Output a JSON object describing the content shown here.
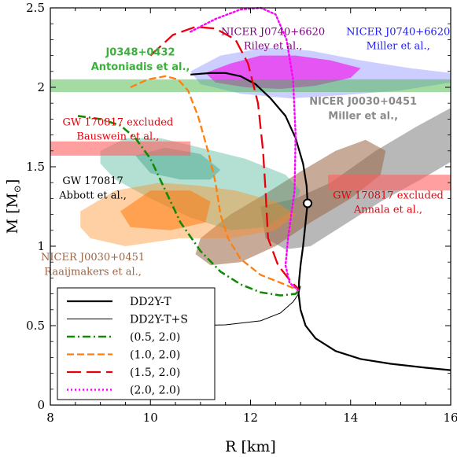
{
  "chart_data": {
    "type": "line",
    "xlabel": "R [km]",
    "ylabel": "M [M",
    "ylabel_sub": "⊙",
    "ylabel_close": "]",
    "xlim": [
      8,
      16
    ],
    "ylim": [
      0,
      2.5
    ],
    "x_ticks": [
      8,
      10,
      12,
      14,
      16
    ],
    "y_ticks": [
      0,
      0.5,
      1,
      1.5,
      2,
      2.5
    ],
    "x_tick_labels": [
      "8",
      "10",
      "12",
      "14",
      "16"
    ],
    "y_tick_labels": [
      "0",
      "0.5",
      "1",
      "1.5",
      "2",
      "2.5"
    ],
    "grid": false,
    "legend_position": "bottom-left",
    "series": [
      {
        "name": "DD2Y-T",
        "color": "#000000",
        "style": "solid",
        "width": 2.2,
        "points": [
          [
            10.8,
            2.08
          ],
          [
            11.2,
            2.09
          ],
          [
            11.5,
            2.09
          ],
          [
            11.8,
            2.07
          ],
          [
            12.1,
            2.02
          ],
          [
            12.4,
            1.93
          ],
          [
            12.7,
            1.82
          ],
          [
            12.9,
            1.68
          ],
          [
            13.05,
            1.52
          ],
          [
            13.12,
            1.38
          ],
          [
            13.14,
            1.27
          ],
          [
            13.1,
            1.15
          ],
          [
            13.05,
            1.0
          ],
          [
            13.0,
            0.88
          ],
          [
            12.97,
            0.78
          ],
          [
            12.96,
            0.7
          ],
          [
            13.0,
            0.6
          ],
          [
            13.1,
            0.5
          ],
          [
            13.3,
            0.42
          ],
          [
            13.7,
            0.34
          ],
          [
            14.2,
            0.29
          ],
          [
            14.8,
            0.26
          ],
          [
            15.5,
            0.235
          ],
          [
            16.0,
            0.22
          ]
        ]
      },
      {
        "name": "DD2Y-T+S",
        "color": "#000000",
        "style": "solid",
        "width": 1,
        "points": [
          [
            10.75,
            0.5
          ],
          [
            11.5,
            0.505
          ],
          [
            12.2,
            0.53
          ],
          [
            12.6,
            0.58
          ],
          [
            12.85,
            0.65
          ],
          [
            12.96,
            0.7
          ],
          [
            13.0,
            0.75
          ]
        ]
      },
      {
        "name": "(0.5, 2.0)",
        "color": "#138a07",
        "style": "dashdot",
        "width": 2.6,
        "points": [
          [
            8.55,
            1.82
          ],
          [
            9.0,
            1.8
          ],
          [
            9.4,
            1.76
          ],
          [
            9.7,
            1.68
          ],
          [
            10.0,
            1.55
          ],
          [
            10.3,
            1.35
          ],
          [
            10.6,
            1.15
          ],
          [
            11.0,
            0.97
          ],
          [
            11.4,
            0.84
          ],
          [
            11.8,
            0.76
          ],
          [
            12.2,
            0.71
          ],
          [
            12.6,
            0.69
          ],
          [
            12.9,
            0.7
          ],
          [
            12.96,
            0.72
          ]
        ]
      },
      {
        "name": "(1.0, 2.0)",
        "color": "#ff7f0e",
        "style": "dash",
        "width": 2.3,
        "points": [
          [
            9.6,
            2.0
          ],
          [
            9.95,
            2.05
          ],
          [
            10.3,
            2.07
          ],
          [
            10.55,
            2.05
          ],
          [
            10.75,
            1.98
          ],
          [
            10.95,
            1.82
          ],
          [
            11.15,
            1.6
          ],
          [
            11.3,
            1.4
          ],
          [
            11.4,
            1.2
          ],
          [
            11.55,
            1.05
          ],
          [
            11.8,
            0.92
          ],
          [
            12.2,
            0.82
          ],
          [
            12.6,
            0.77
          ],
          [
            12.9,
            0.73
          ],
          [
            12.96,
            0.72
          ]
        ]
      },
      {
        "name": "(1.5, 2.0)",
        "color": "#e8000b",
        "style": "longdash",
        "width": 2.3,
        "points": [
          [
            10.0,
            2.2
          ],
          [
            10.45,
            2.33
          ],
          [
            10.9,
            2.38
          ],
          [
            11.3,
            2.37
          ],
          [
            11.7,
            2.3
          ],
          [
            11.95,
            2.15
          ],
          [
            12.15,
            1.9
          ],
          [
            12.25,
            1.6
          ],
          [
            12.3,
            1.35
          ],
          [
            12.35,
            1.05
          ],
          [
            12.55,
            0.88
          ],
          [
            12.8,
            0.78
          ],
          [
            12.96,
            0.73
          ]
        ]
      },
      {
        "name": "(2.0, 2.0)",
        "color": "#ff00ff",
        "style": "dot",
        "width": 2.4,
        "points": [
          [
            10.8,
            2.35
          ],
          [
            11.3,
            2.43
          ],
          [
            11.8,
            2.49
          ],
          [
            12.2,
            2.5
          ],
          [
            12.5,
            2.46
          ],
          [
            12.72,
            2.3
          ],
          [
            12.85,
            2.05
          ],
          [
            12.9,
            1.7
          ],
          [
            12.88,
            1.35
          ],
          [
            12.75,
            1.05
          ],
          [
            12.7,
            0.88
          ],
          [
            12.78,
            0.77
          ],
          [
            12.96,
            0.72
          ]
        ]
      }
    ],
    "marker": {
      "x": 13.14,
      "y": 1.27
    },
    "regions": [
      {
        "name": "NICER J0740+6620 Miller",
        "color": "#8f92ff",
        "opacity": 0.45,
        "points": [
          [
            10.8,
            2.1
          ],
          [
            11.4,
            2.2
          ],
          [
            12.3,
            2.25
          ],
          [
            13.2,
            2.23
          ],
          [
            14.2,
            2.17
          ],
          [
            15.2,
            2.12
          ],
          [
            16.0,
            2.09
          ],
          [
            16.0,
            2.03
          ],
          [
            15.0,
            1.98
          ],
          [
            13.8,
            1.95
          ],
          [
            12.8,
            1.93
          ],
          [
            11.8,
            1.96
          ],
          [
            11.0,
            2.02
          ]
        ]
      },
      {
        "name": "NICER J0740+6620 Riley",
        "color": "#ee22ee",
        "opacity": 0.7,
        "points": [
          [
            11.1,
            2.09
          ],
          [
            11.6,
            2.15
          ],
          [
            12.2,
            2.2
          ],
          [
            12.9,
            2.2
          ],
          [
            13.6,
            2.17
          ],
          [
            14.2,
            2.12
          ],
          [
            14.0,
            2.06
          ],
          [
            13.3,
            2.01
          ],
          [
            12.6,
            1.99
          ],
          [
            11.9,
            2.0
          ],
          [
            11.3,
            2.03
          ]
        ]
      },
      {
        "name": "J0348+0432 band",
        "color": "#47b847",
        "opacity": 0.5,
        "points": [
          [
            8.0,
            1.97
          ],
          [
            16.0,
            1.97
          ],
          [
            16.0,
            2.05
          ],
          [
            8.0,
            2.05
          ]
        ]
      },
      {
        "name": "NICER J0030+0451 Miller",
        "color": "#9a9a9a",
        "opacity": 0.7,
        "points": [
          [
            12.2,
            1.25
          ],
          [
            12.9,
            1.3
          ],
          [
            13.6,
            1.4
          ],
          [
            14.5,
            1.6
          ],
          [
            15.3,
            1.75
          ],
          [
            16.0,
            1.87
          ],
          [
            16.0,
            1.53
          ],
          [
            15.4,
            1.42
          ],
          [
            14.6,
            1.28
          ],
          [
            13.8,
            1.12
          ],
          [
            13.2,
            1.0
          ],
          [
            12.7,
            0.98
          ],
          [
            12.3,
            1.05
          ]
        ]
      },
      {
        "name": "NICER J0030+0451 Raaijmakers",
        "color": "#9a6446",
        "opacity": 0.55,
        "points": [
          [
            11.0,
            1.05
          ],
          [
            11.6,
            1.2
          ],
          [
            12.3,
            1.33
          ],
          [
            13.0,
            1.47
          ],
          [
            13.7,
            1.6
          ],
          [
            14.3,
            1.67
          ],
          [
            14.7,
            1.6
          ],
          [
            14.6,
            1.45
          ],
          [
            14.0,
            1.3
          ],
          [
            13.2,
            1.15
          ],
          [
            12.5,
            1.0
          ],
          [
            11.8,
            0.9
          ],
          [
            11.2,
            0.88
          ],
          [
            10.9,
            0.95
          ]
        ]
      },
      {
        "name": "GW170817 Abbott blue",
        "color": "#3aab8c",
        "opacity": 0.38,
        "points": [
          [
            9.0,
            1.6
          ],
          [
            9.5,
            1.68
          ],
          [
            10.2,
            1.68
          ],
          [
            11.0,
            1.62
          ],
          [
            11.9,
            1.55
          ],
          [
            12.7,
            1.45
          ],
          [
            13.0,
            1.35
          ],
          [
            12.8,
            1.22
          ],
          [
            12.3,
            1.12
          ],
          [
            11.6,
            1.1
          ],
          [
            10.8,
            1.18
          ],
          [
            10.0,
            1.3
          ],
          [
            9.3,
            1.42
          ],
          [
            9.0,
            1.52
          ]
        ]
      },
      {
        "name": "GW170817 Abbott inner",
        "color": "#1a9070",
        "opacity": 0.35,
        "points": [
          [
            9.7,
            1.57
          ],
          [
            10.3,
            1.62
          ],
          [
            11.0,
            1.58
          ],
          [
            11.4,
            1.48
          ],
          [
            11.2,
            1.42
          ],
          [
            10.6,
            1.42
          ],
          [
            10.0,
            1.46
          ]
        ]
      },
      {
        "name": "GW170817 Abbott orange",
        "color": "#ff8a1a",
        "opacity": 0.4,
        "points": [
          [
            8.6,
            1.22
          ],
          [
            9.3,
            1.35
          ],
          [
            10.2,
            1.4
          ],
          [
            11.0,
            1.38
          ],
          [
            11.7,
            1.35
          ],
          [
            12.5,
            1.28
          ],
          [
            12.9,
            1.2
          ],
          [
            12.5,
            1.1
          ],
          [
            11.6,
            1.05
          ],
          [
            10.6,
            1.05
          ],
          [
            9.5,
            1.0
          ],
          [
            8.8,
            1.05
          ],
          [
            8.6,
            1.12
          ]
        ]
      },
      {
        "name": "GW170817 Abbott orange inner",
        "color": "#ff7200",
        "opacity": 0.5,
        "points": [
          [
            9.4,
            1.22
          ],
          [
            10.0,
            1.35
          ],
          [
            10.8,
            1.35
          ],
          [
            11.2,
            1.28
          ],
          [
            11.1,
            1.15
          ],
          [
            10.4,
            1.1
          ],
          [
            9.6,
            1.12
          ]
        ]
      },
      {
        "name": "GW170817 Bauswein",
        "color": "#ff5f5f",
        "opacity": 0.6,
        "points": [
          [
            8.0,
            1.57
          ],
          [
            10.8,
            1.57
          ],
          [
            10.8,
            1.66
          ],
          [
            8.0,
            1.66
          ]
        ]
      },
      {
        "name": "GW170817 Annala",
        "color": "#ff5f5f",
        "opacity": 0.6,
        "points": [
          [
            13.55,
            1.35
          ],
          [
            16.0,
            1.35
          ],
          [
            16.0,
            1.45
          ],
          [
            13.55,
            1.45
          ]
        ]
      }
    ],
    "annotations": [
      {
        "id": "j0348",
        "text": "J0348+0432",
        "x": 9.8,
        "y": 2.2,
        "color": "#3cb03c",
        "bold": true
      },
      {
        "id": "antoniadis",
        "text": "Antoniadis et al.,",
        "x": 9.8,
        "y": 2.11,
        "color": "#3cb03c",
        "bold": true
      },
      {
        "id": "riley1",
        "text": "NICER J0740+6620",
        "x": 12.45,
        "y": 2.33,
        "color": "#800080",
        "bold": false
      },
      {
        "id": "riley2",
        "text": "Riley et al.,",
        "x": 12.45,
        "y": 2.24,
        "color": "#800080",
        "bold": false
      },
      {
        "id": "miller1",
        "text": "NICER J0740+6620",
        "x": 14.95,
        "y": 2.33,
        "color": "#1a1aff",
        "bold": false
      },
      {
        "id": "miller2",
        "text": "Miller et al.,",
        "x": 14.95,
        "y": 2.24,
        "color": "#1a1aff",
        "bold": false
      },
      {
        "id": "nicer0030m1",
        "text": "NICER J0030+0451",
        "x": 14.25,
        "y": 1.89,
        "color": "#8a8a8a",
        "bold": true
      },
      {
        "id": "nicer0030m2",
        "text": "Miller et al.,",
        "x": 14.25,
        "y": 1.8,
        "color": "#8a8a8a",
        "bold": true
      },
      {
        "id": "bauswein1",
        "text": "GW 170817 excluded",
        "x": 9.35,
        "y": 1.76,
        "color": "#e8000b",
        "bold": false
      },
      {
        "id": "bauswein2",
        "text": "Bauswein et al.,",
        "x": 9.35,
        "y": 1.67,
        "color": "#e8000b",
        "bold": false
      },
      {
        "id": "abbott1",
        "text": "GW 170817",
        "x": 8.85,
        "y": 1.39,
        "color": "#000000",
        "bold": false
      },
      {
        "id": "abbott2",
        "text": "Abbott et al.,",
        "x": 8.85,
        "y": 1.3,
        "color": "#000000",
        "bold": false
      },
      {
        "id": "annala1",
        "text": "GW 170817 excluded",
        "x": 14.75,
        "y": 1.3,
        "color": "#e8000b",
        "bold": false
      },
      {
        "id": "annala2",
        "text": "Annala et al.,",
        "x": 14.75,
        "y": 1.21,
        "color": "#e8000b",
        "bold": false
      },
      {
        "id": "raaij1",
        "text": "NICER J0030+0451",
        "x": 8.85,
        "y": 0.91,
        "color": "#9a6446",
        "bold": false
      },
      {
        "id": "raaij2",
        "text": "Raaijmakers et al.,",
        "x": 8.85,
        "y": 0.82,
        "color": "#9a6446",
        "bold": false
      }
    ]
  }
}
